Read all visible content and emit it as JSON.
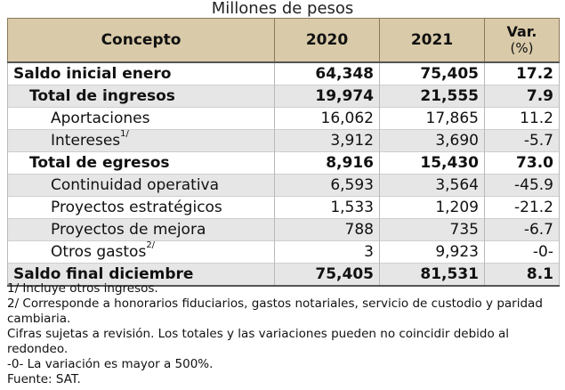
{
  "subtitle": "Millones de pesos",
  "headers": {
    "concept": "Concepto",
    "y2020": "2020",
    "y2021": "2021",
    "var": "Var.",
    "var_unit": "(%)"
  },
  "rows": [
    {
      "label": "Saldo inicial enero",
      "sup": "",
      "v2020": "64,348",
      "v2021": "75,405",
      "var": "17.2"
    },
    {
      "label": "Total de ingresos",
      "sup": "",
      "v2020": "19,974",
      "v2021": "21,555",
      "var": "7.9"
    },
    {
      "label": "Aportaciones",
      "sup": "",
      "v2020": "16,062",
      "v2021": "17,865",
      "var": "11.2"
    },
    {
      "label": "Intereses",
      "sup": "1/",
      "v2020": "3,912",
      "v2021": "3,690",
      "var": "-5.7"
    },
    {
      "label": "Total de egresos",
      "sup": "",
      "v2020": "8,916",
      "v2021": "15,430",
      "var": "73.0"
    },
    {
      "label": "Continuidad operativa",
      "sup": "",
      "v2020": "6,593",
      "v2021": "3,564",
      "var": "-45.9"
    },
    {
      "label": "Proyectos estratégicos",
      "sup": "",
      "v2020": "1,533",
      "v2021": "1,209",
      "var": "-21.2"
    },
    {
      "label": "Proyectos de mejora",
      "sup": "",
      "v2020": "788",
      "v2021": "735",
      "var": "-6.7"
    },
    {
      "label": "Otros gastos",
      "sup": "2/",
      "v2020": "3",
      "v2021": "9,923",
      "var": "-0-"
    },
    {
      "label": "Saldo final diciembre",
      "sup": "",
      "v2020": "75,405",
      "v2021": "81,531",
      "var": "8.1"
    }
  ],
  "notes": [
    "1/ Incluye otros ingresos.",
    "2/ Corresponde a honorarios fiduciarios, gastos notariales, servicio de custodio y paridad cambiaria.",
    "Cifras sujetas a revisión. Los totales y las variaciones pueden no coincidir debido al redondeo.",
    "-0- La variación es mayor a 500%.",
    "Fuente: SAT."
  ],
  "colors": {
    "header_bg": "#d9caa9",
    "shade_bg": "#e6e6e6"
  }
}
